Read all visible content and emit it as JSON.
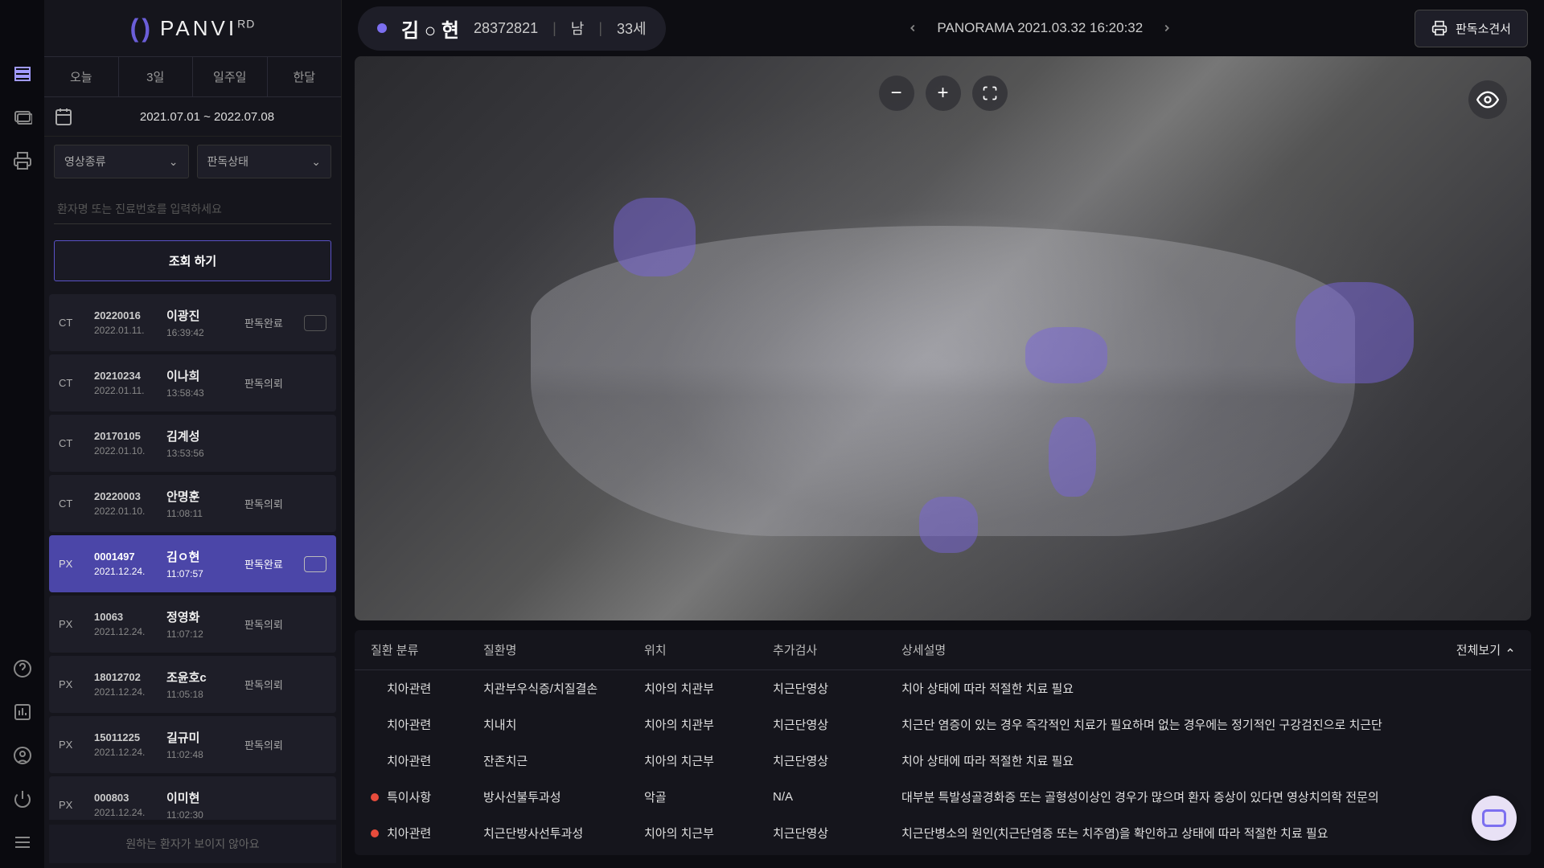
{
  "logo": {
    "brand": "PANVI",
    "suffix": "RD"
  },
  "sidebar": {
    "tabs": [
      "오늘",
      "3일",
      "일주일",
      "한달"
    ],
    "date_range": "2021.07.01 ~ 2022.07.08",
    "filter_type": "영상종류",
    "filter_status": "판독상태",
    "search_placeholder": "환자명 또는 진료번호를 입력하세요",
    "query_button": "조회 하기",
    "footer": "원하는 환자가 보이지 않아요"
  },
  "patients": [
    {
      "type": "CT",
      "id": "20220016",
      "date": "2022.01.11.",
      "name": "이광진",
      "time": "16:39:42",
      "status": "판독완료",
      "selected": false,
      "chat": true
    },
    {
      "type": "CT",
      "id": "20210234",
      "date": "2022.01.11.",
      "name": "이나희",
      "time": "13:58:43",
      "status": "판독의뢰",
      "selected": false,
      "chat": false
    },
    {
      "type": "CT",
      "id": "20170105",
      "date": "2022.01.10.",
      "name": "김계성",
      "time": "13:53:56",
      "status": "",
      "selected": false,
      "chat": false
    },
    {
      "type": "CT",
      "id": "20220003",
      "date": "2022.01.10.",
      "name": "안명훈",
      "time": "11:08:11",
      "status": "판독의뢰",
      "selected": false,
      "chat": false
    },
    {
      "type": "PX",
      "id": "0001497",
      "date": "2021.12.24.",
      "name": "김ㅇ현",
      "time": "11:07:57",
      "status": "판독완료",
      "selected": true,
      "chat": true
    },
    {
      "type": "PX",
      "id": "10063",
      "date": "2021.12.24.",
      "name": "정영화",
      "time": "11:07:12",
      "status": "판독의뢰",
      "selected": false,
      "chat": false
    },
    {
      "type": "PX",
      "id": "18012702",
      "date": "2021.12.24.",
      "name": "조윤호c",
      "time": "11:05:18",
      "status": "판독의뢰",
      "selected": false,
      "chat": false
    },
    {
      "type": "PX",
      "id": "15011225",
      "date": "2021.12.24.",
      "name": "길규미",
      "time": "11:02:48",
      "status": "판독의뢰",
      "selected": false,
      "chat": false
    },
    {
      "type": "PX",
      "id": "000803",
      "date": "2021.12.24.",
      "name": "이미현",
      "time": "11:02:30",
      "status": "",
      "selected": false,
      "chat": false
    }
  ],
  "header": {
    "patient_name": "김 ○ 현",
    "patient_id": "28372821",
    "sex": "남",
    "age": "33세",
    "image_title": "PANORAMA 2021.03.32 16:20:32",
    "report_button": "판독소견서"
  },
  "table": {
    "headers": {
      "cat": "질환 분류",
      "name": "질환명",
      "loc": "위치",
      "exam": "추가검사",
      "desc": "상세설명",
      "toggle": "전체보기"
    },
    "rows": [
      {
        "flag": false,
        "cat": "치아관련",
        "name": "치관부우식증/치질결손",
        "loc": "치아의 치관부",
        "exam": "치근단영상",
        "desc": "치아 상태에 따라 적절한 치료 필요"
      },
      {
        "flag": false,
        "cat": "치아관련",
        "name": "치내치",
        "loc": "치아의 치관부",
        "exam": "치근단영상",
        "desc": "치근단 염증이 있는 경우 즉각적인 치료가 필요하며 없는 경우에는 정기적인 구강검진으로 치근단"
      },
      {
        "flag": false,
        "cat": "치아관련",
        "name": "잔존치근",
        "loc": "치아의 치근부",
        "exam": "치근단영상",
        "desc": "치아 상태에 따라 적절한 치료 필요"
      },
      {
        "flag": true,
        "cat": "특이사항",
        "name": "방사선불투과성",
        "loc": "악골",
        "exam": "N/A",
        "desc": "대부분 특발성골경화증 또는 골형성이상인 경우가 많으며 환자 증상이 있다면 영상치의학 전문의"
      },
      {
        "flag": true,
        "cat": "치아관련",
        "name": "치근단방사선투과성",
        "loc": "치아의 치근부",
        "exam": "치근단영상",
        "desc": "치근단병소의 원인(치근단염증 또는 치주염)을 확인하고 상태에 따라 적절한 치료 필요"
      }
    ]
  },
  "colors": {
    "accent": "#7c6ff0",
    "selected": "#4b46a8",
    "bg": "#0d0d12",
    "panel": "#15151c",
    "card": "#1e1e28"
  }
}
